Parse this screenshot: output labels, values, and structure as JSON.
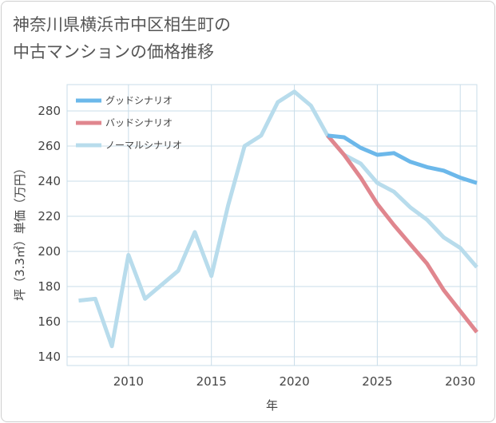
{
  "title_line1": "神奈川県横浜市中区相生町の",
  "title_line2": "中古マンションの価格推移",
  "chart_data": {
    "type": "line",
    "title": "神奈川県横浜市中区相生町の中古マンションの価格推移",
    "xlabel": "年",
    "ylabel": "坪（3.3㎡）単価（万円）",
    "xlim": [
      2006.3,
      2031
    ],
    "ylim": [
      135,
      295
    ],
    "xticks": [
      2010,
      2015,
      2020,
      2025,
      2030
    ],
    "yticks": [
      140,
      160,
      180,
      200,
      220,
      240,
      260,
      280
    ],
    "grid": true,
    "legend_position": "top-left",
    "series": [
      {
        "name": "グッドシナリオ",
        "color": "#6cb8ea",
        "x": [
          2022,
          2023,
          2024,
          2025,
          2026,
          2027,
          2028,
          2029,
          2030,
          2031
        ],
        "y": [
          266,
          265,
          259,
          255,
          256,
          251,
          248,
          246,
          242,
          239
        ]
      },
      {
        "name": "バッドシナリオ",
        "color": "#e0868e",
        "x": [
          2022,
          2023,
          2024,
          2025,
          2026,
          2027,
          2028,
          2029,
          2030,
          2031
        ],
        "y": [
          266,
          255,
          242,
          227,
          215,
          204,
          193,
          178,
          166,
          154
        ]
      },
      {
        "name": "ノーマルシナリオ",
        "color": "#b8dcec",
        "x": [
          2007,
          2008,
          2009,
          2010,
          2011,
          2012,
          2013,
          2014,
          2015,
          2016,
          2017,
          2018,
          2019,
          2020,
          2021,
          2022,
          2023,
          2024,
          2025,
          2026,
          2027,
          2028,
          2029,
          2030,
          2031
        ],
        "y": [
          172,
          173,
          146,
          198,
          173,
          181,
          189,
          211,
          186,
          226,
          260,
          266,
          285,
          291,
          283,
          266,
          255,
          250,
          239,
          234,
          225,
          218,
          208,
          202,
          191
        ]
      }
    ]
  }
}
